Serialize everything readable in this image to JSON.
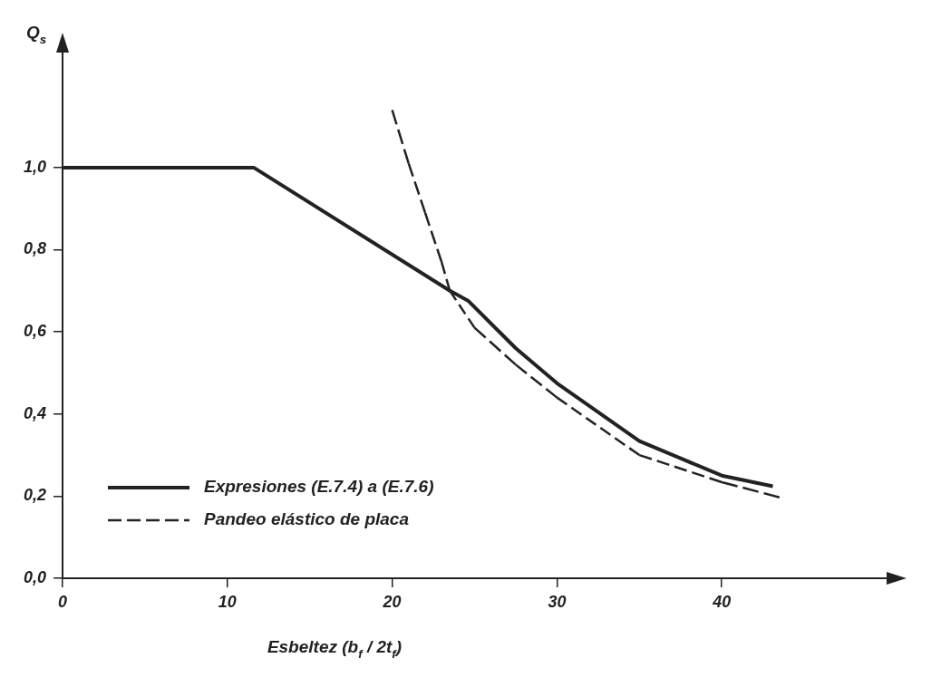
{
  "chart_data": {
    "type": "line",
    "xlabel": "Esbeltez (b$_{f}$ / 2t$_{f}$)",
    "ylabel": "Q$_{s}$",
    "xlim": [
      0,
      50
    ],
    "ylim": [
      0,
      1.28
    ],
    "xticks": [
      0,
      10,
      20,
      30,
      40
    ],
    "yticks": [
      {
        "value": 0,
        "label": "0,0"
      },
      {
        "value": 0.2,
        "label": "0,2"
      },
      {
        "value": 0.4,
        "label": "0,4"
      },
      {
        "value": 0.6,
        "label": "0,6"
      },
      {
        "value": 0.8,
        "label": "0,8"
      },
      {
        "value": 1,
        "label": "1,0"
      }
    ],
    "grid": false,
    "legend": "bottom left",
    "marker": "none",
    "series": [
      {
        "name": "Expresiones (E.7.4) a (E.7.6)",
        "color": "#222222",
        "line_style": "solid",
        "x": [
          0,
          11.6,
          23.5,
          24.6,
          27.5,
          30,
          35,
          40,
          43.1
        ],
        "values": [
          1,
          1,
          0.7,
          0.676,
          0.56,
          0.475,
          0.334,
          0.25,
          0.224
        ]
      },
      {
        "name": "Pandeo elástico de placa",
        "color": "#222222",
        "line_style": "dashed",
        "x": [
          20,
          21,
          22,
          23,
          23.5,
          25,
          27.5,
          30,
          35,
          40,
          43.5
        ],
        "values": [
          1.14,
          1.01,
          0.89,
          0.77,
          0.7,
          0.61,
          0.52,
          0.44,
          0.3,
          0.234,
          0.197
        ]
      }
    ]
  }
}
